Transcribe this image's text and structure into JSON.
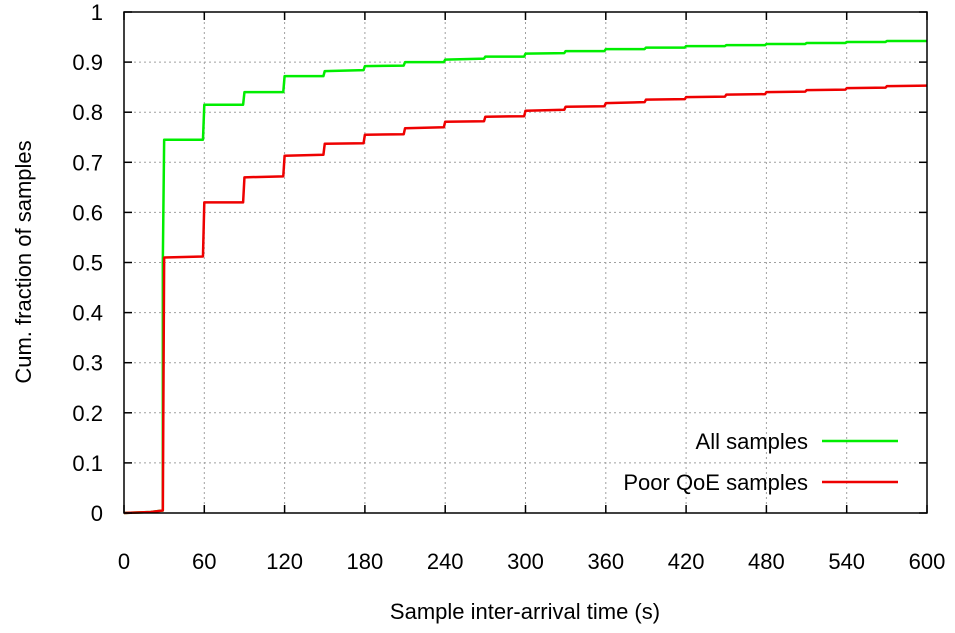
{
  "chart_data": {
    "type": "line",
    "xlabel": "Sample inter-arrival time (s)",
    "ylabel": "Cum. fraction of samples",
    "xlim": [
      0,
      600
    ],
    "ylim": [
      0,
      1
    ],
    "xticks": [
      0,
      60,
      120,
      180,
      240,
      300,
      360,
      420,
      480,
      540,
      600
    ],
    "yticks": [
      0,
      0.1,
      0.2,
      0.3,
      0.4,
      0.5,
      0.6,
      0.7,
      0.8,
      0.9,
      1
    ],
    "xtick_labels": [
      "0",
      "60",
      "120",
      "180",
      "240",
      "300",
      "360",
      "420",
      "480",
      "540",
      "600"
    ],
    "ytick_labels": [
      "0",
      "0.1",
      "0.2",
      "0.3",
      "0.4",
      "0.5",
      "0.6",
      "0.7",
      "0.8",
      "0.9",
      "1"
    ],
    "grid": true,
    "legend_position": "bottom-right",
    "series": [
      {
        "name": "All samples",
        "color": "#00ee00",
        "points": [
          [
            0,
            0
          ],
          [
            20,
            0.002
          ],
          [
            29,
            0.005
          ],
          [
            29,
            0.5
          ],
          [
            30,
            0.745
          ],
          [
            59,
            0.745
          ],
          [
            60,
            0.815
          ],
          [
            89,
            0.815
          ],
          [
            90,
            0.84
          ],
          [
            119,
            0.84
          ],
          [
            120,
            0.872
          ],
          [
            149,
            0.872
          ],
          [
            150,
            0.882
          ],
          [
            179,
            0.884
          ],
          [
            180,
            0.892
          ],
          [
            209,
            0.893
          ],
          [
            210,
            0.9
          ],
          [
            239,
            0.9
          ],
          [
            240,
            0.905
          ],
          [
            269,
            0.907
          ],
          [
            270,
            0.911
          ],
          [
            299,
            0.911
          ],
          [
            300,
            0.917
          ],
          [
            329,
            0.918
          ],
          [
            330,
            0.922
          ],
          [
            359,
            0.922
          ],
          [
            360,
            0.926
          ],
          [
            389,
            0.926
          ],
          [
            390,
            0.929
          ],
          [
            419,
            0.929
          ],
          [
            420,
            0.932
          ],
          [
            449,
            0.932
          ],
          [
            450,
            0.934
          ],
          [
            479,
            0.934
          ],
          [
            480,
            0.936
          ],
          [
            509,
            0.936
          ],
          [
            510,
            0.938
          ],
          [
            539,
            0.938
          ],
          [
            540,
            0.94
          ],
          [
            569,
            0.94
          ],
          [
            570,
            0.942
          ],
          [
            600,
            0.942
          ]
        ]
      },
      {
        "name": "Poor QoE samples",
        "color": "#ee0000",
        "points": [
          [
            0,
            0
          ],
          [
            20,
            0.002
          ],
          [
            29,
            0.005
          ],
          [
            30,
            0.51
          ],
          [
            59,
            0.512
          ],
          [
            60,
            0.62
          ],
          [
            89,
            0.62
          ],
          [
            90,
            0.67
          ],
          [
            119,
            0.672
          ],
          [
            120,
            0.713
          ],
          [
            149,
            0.715
          ],
          [
            150,
            0.737
          ],
          [
            179,
            0.738
          ],
          [
            180,
            0.755
          ],
          [
            209,
            0.756
          ],
          [
            210,
            0.768
          ],
          [
            239,
            0.77
          ],
          [
            240,
            0.781
          ],
          [
            269,
            0.782
          ],
          [
            270,
            0.791
          ],
          [
            299,
            0.792
          ],
          [
            300,
            0.803
          ],
          [
            329,
            0.805
          ],
          [
            330,
            0.811
          ],
          [
            359,
            0.812
          ],
          [
            360,
            0.818
          ],
          [
            389,
            0.82
          ],
          [
            390,
            0.825
          ],
          [
            419,
            0.826
          ],
          [
            420,
            0.83
          ],
          [
            449,
            0.831
          ],
          [
            450,
            0.835
          ],
          [
            479,
            0.836
          ],
          [
            480,
            0.84
          ],
          [
            509,
            0.841
          ],
          [
            510,
            0.844
          ],
          [
            539,
            0.845
          ],
          [
            540,
            0.848
          ],
          [
            569,
            0.849
          ],
          [
            570,
            0.852
          ],
          [
            600,
            0.853
          ]
        ]
      }
    ]
  }
}
